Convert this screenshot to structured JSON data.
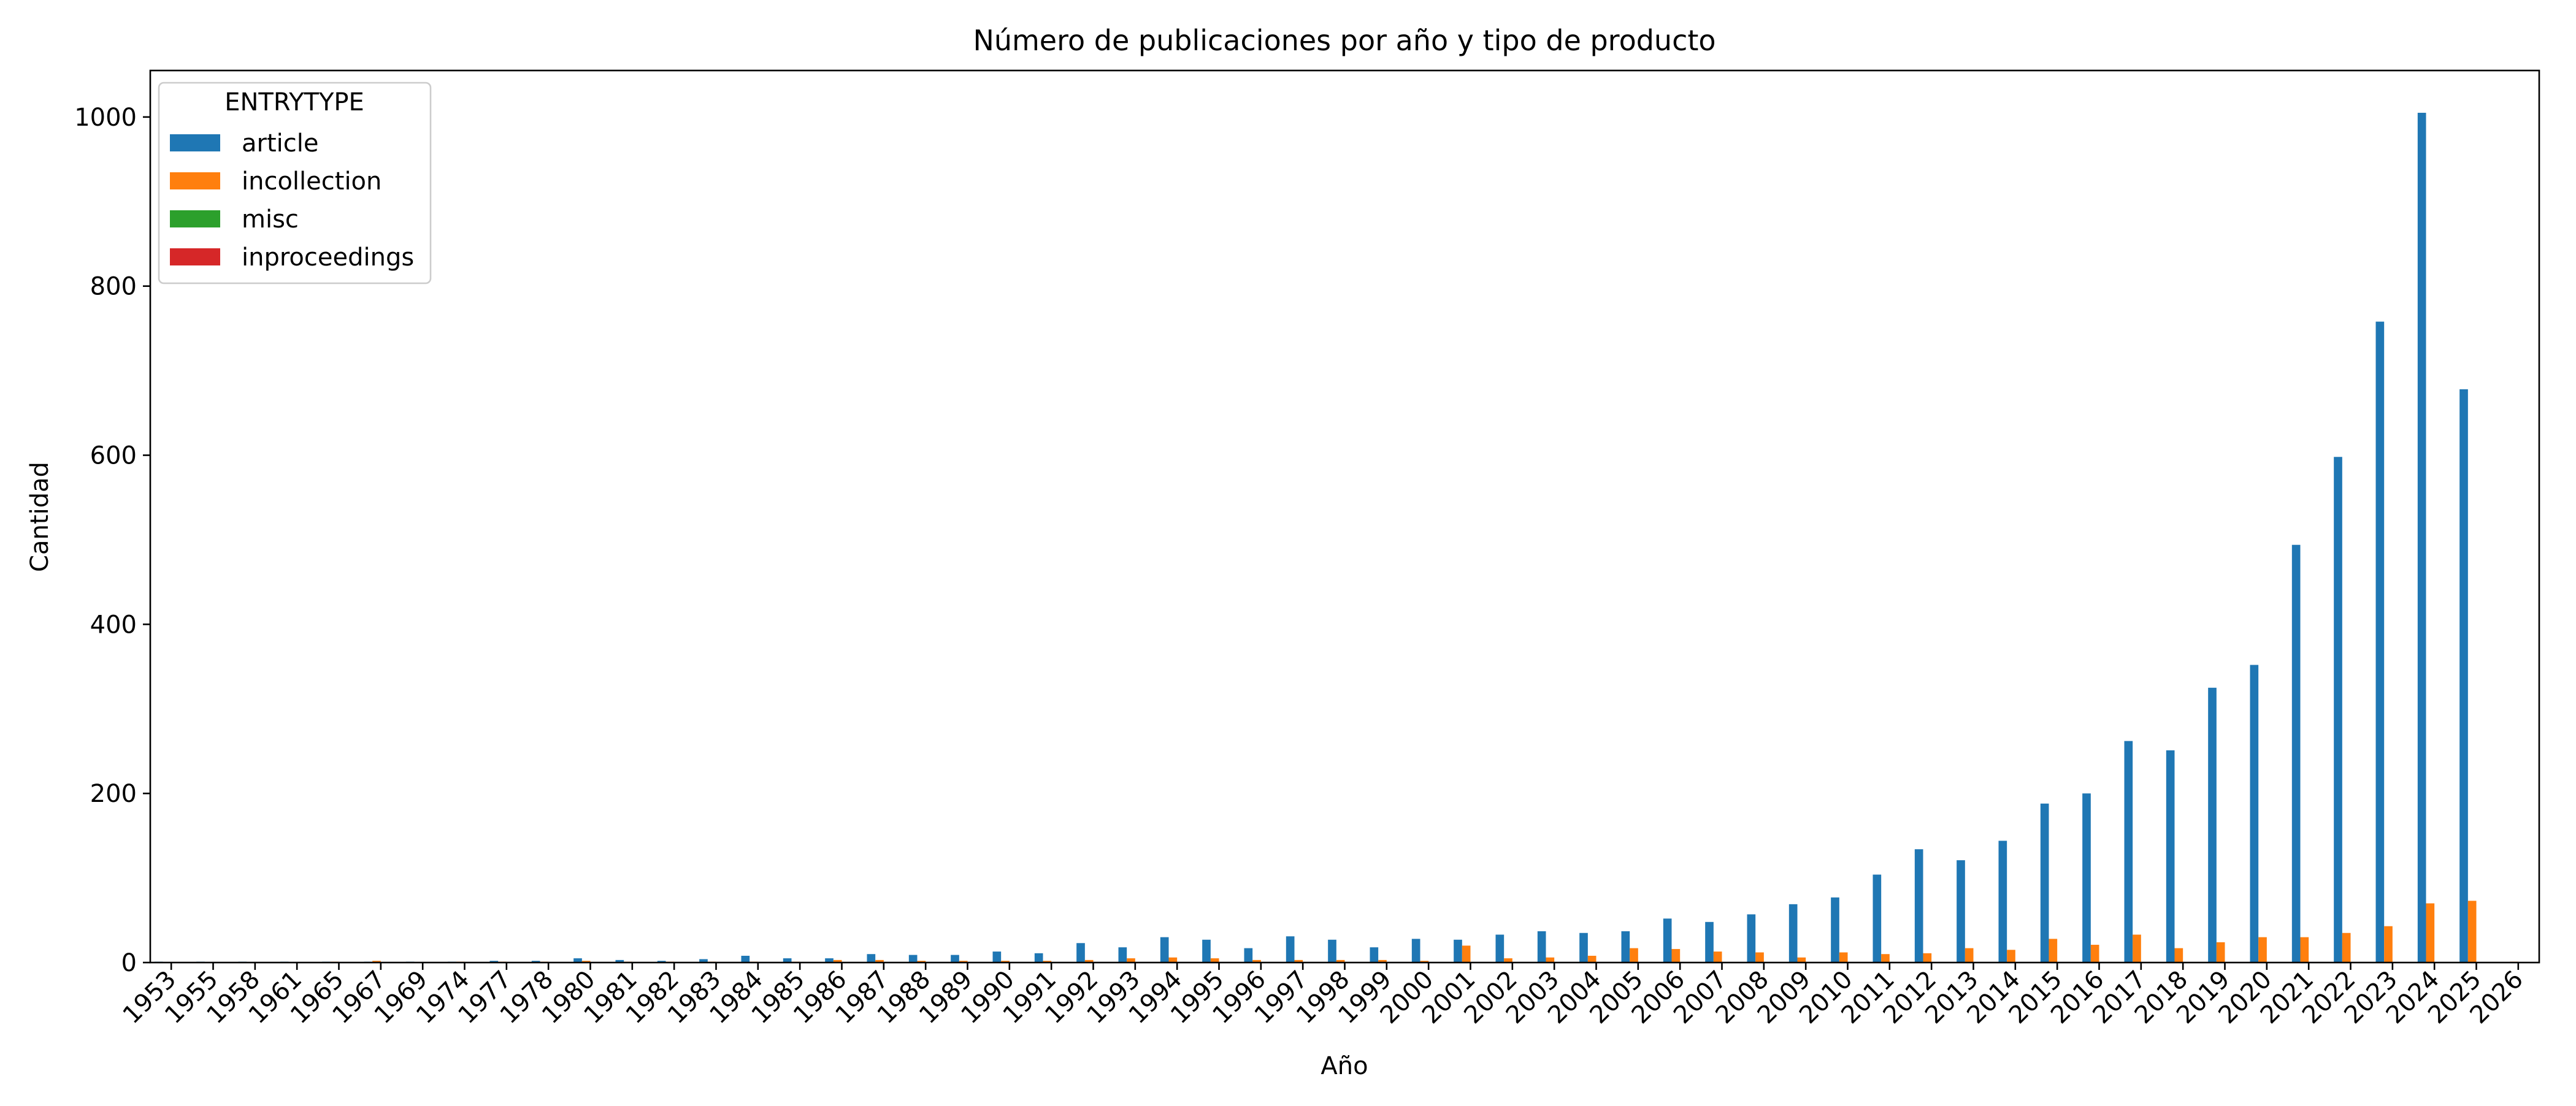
{
  "chart_data": {
    "type": "bar",
    "title": "Número de publicaciones por año y tipo de producto",
    "xlabel": "Año",
    "ylabel": "Cantidad",
    "ylim": [
      0,
      1055
    ],
    "yticks": [
      0,
      200,
      400,
      600,
      800,
      1000
    ],
    "grid": false,
    "legend": {
      "title": "ENTRYTYPE",
      "placement": "top-left"
    },
    "categories": [
      "1953",
      "1955",
      "1958",
      "1961",
      "1965",
      "1967",
      "1969",
      "1974",
      "1977",
      "1978",
      "1980",
      "1981",
      "1982",
      "1983",
      "1984",
      "1985",
      "1986",
      "1987",
      "1988",
      "1989",
      "1990",
      "1991",
      "1992",
      "1993",
      "1994",
      "1995",
      "1996",
      "1997",
      "1998",
      "1999",
      "2000",
      "2001",
      "2002",
      "2003",
      "2004",
      "2005",
      "2006",
      "2007",
      "2008",
      "2009",
      "2010",
      "2011",
      "2012",
      "2013",
      "2014",
      "2015",
      "2016",
      "2017",
      "2018",
      "2019",
      "2020",
      "2021",
      "2022",
      "2023",
      "2024",
      "2025",
      "2026"
    ],
    "series": [
      {
        "name": "article",
        "color": "#1f77b4",
        "values": [
          1,
          1,
          1,
          1,
          1,
          1,
          1,
          1,
          2,
          2,
          5,
          3,
          2,
          4,
          8,
          5,
          5,
          10,
          9,
          9,
          13,
          11,
          23,
          18,
          30,
          27,
          17,
          31,
          27,
          18,
          28,
          27,
          33,
          37,
          35,
          37,
          52,
          48,
          57,
          69,
          77,
          104,
          134,
          121,
          144,
          188,
          200,
          262,
          251,
          325,
          352,
          494,
          598,
          758,
          1005,
          678,
          0
        ]
      },
      {
        "name": "incollection",
        "color": "#ff7f0e",
        "values": [
          0,
          0,
          0,
          0,
          1,
          2,
          0,
          1,
          1,
          1,
          2,
          1,
          1,
          1,
          1,
          1,
          3,
          3,
          2,
          2,
          2,
          2,
          3,
          5,
          6,
          5,
          3,
          3,
          3,
          3,
          2,
          20,
          5,
          6,
          8,
          17,
          16,
          13,
          12,
          6,
          12,
          10,
          11,
          17,
          15,
          28,
          21,
          33,
          17,
          24,
          30,
          30,
          35,
          43,
          70,
          73,
          1
        ]
      },
      {
        "name": "misc",
        "color": "#2ca02c",
        "values": [
          0,
          0,
          0,
          0,
          0,
          0,
          0,
          0,
          0,
          0,
          0,
          0,
          0,
          0,
          0,
          0,
          0,
          0,
          0,
          0,
          0,
          0,
          0,
          0,
          0,
          0,
          0,
          0,
          0,
          0,
          0,
          0,
          0,
          0,
          0,
          0,
          0,
          0,
          0,
          0,
          0,
          0,
          0,
          0,
          0,
          0,
          0,
          0,
          0,
          0,
          0,
          0,
          0,
          0,
          0,
          0,
          0
        ]
      },
      {
        "name": "inproceedings",
        "color": "#d62728",
        "values": [
          0,
          0,
          0,
          0,
          0,
          0,
          0,
          0,
          0,
          0,
          0,
          0,
          0,
          0,
          0,
          0,
          0,
          0,
          0,
          0,
          0,
          0,
          0,
          0,
          0,
          0,
          0,
          0,
          0,
          0,
          0,
          0,
          0,
          0,
          0,
          0,
          0,
          0,
          0,
          0,
          0,
          0,
          0,
          0,
          0,
          0,
          0,
          0,
          0,
          0,
          0,
          0,
          0,
          0,
          0,
          0,
          0
        ]
      }
    ]
  }
}
